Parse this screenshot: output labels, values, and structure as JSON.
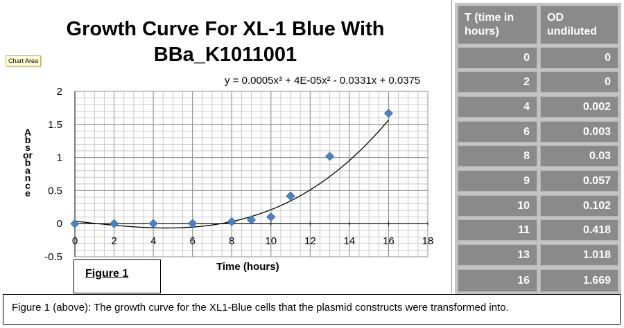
{
  "chart_data": {
    "type": "scatter",
    "title": "Growth Curve For XL-1 Blue With\nBBa_K1011001",
    "xlabel": "Time (hours)",
    "ylabel": "Absorbance",
    "xlim": [
      0,
      18
    ],
    "ylim": [
      -0.5,
      2
    ],
    "x_ticks": [
      "0",
      "2",
      "4",
      "6",
      "8",
      "10",
      "12",
      "14",
      "16",
      "18"
    ],
    "y_ticks": [
      "-0.5",
      "0",
      "0.5",
      "1",
      "1.5",
      "2"
    ],
    "grid": true,
    "legend": "none",
    "point_color": "#4f81bd",
    "series": [
      {
        "x": [
          0,
          2,
          4,
          6,
          8,
          9,
          10,
          11,
          13,
          16
        ],
        "y": [
          0,
          0,
          0.002,
          0.003,
          0.03,
          0.057,
          0.102,
          0.418,
          1.018,
          1.669
        ]
      }
    ],
    "trendline": {
      "type": "polynomial",
      "order": 3,
      "coefficients": [
        0.0005,
        4e-05,
        -0.0331,
        0.0375
      ],
      "equation_label": "y = 0.0005x³ + 4E-05x² - 0.0331x + 0.0375"
    }
  },
  "chart_area_tag": "Chart Area",
  "figure_label": "Figure 1",
  "table": {
    "headers": [
      "T (time in hours)",
      "OD undiluted"
    ],
    "rows": [
      [
        "0",
        "0"
      ],
      [
        "2",
        "0"
      ],
      [
        "4",
        "0.002"
      ],
      [
        "6",
        "0.003"
      ],
      [
        "8",
        "0.03"
      ],
      [
        "9",
        "0.057"
      ],
      [
        "10",
        "0.102"
      ],
      [
        "11",
        "0.418"
      ],
      [
        "13",
        "1.018"
      ],
      [
        "16",
        "1.669"
      ]
    ]
  },
  "caption": "Figure 1 (above): The growth curve for the XL1-Blue cells that the plasmid constructs were transformed into."
}
